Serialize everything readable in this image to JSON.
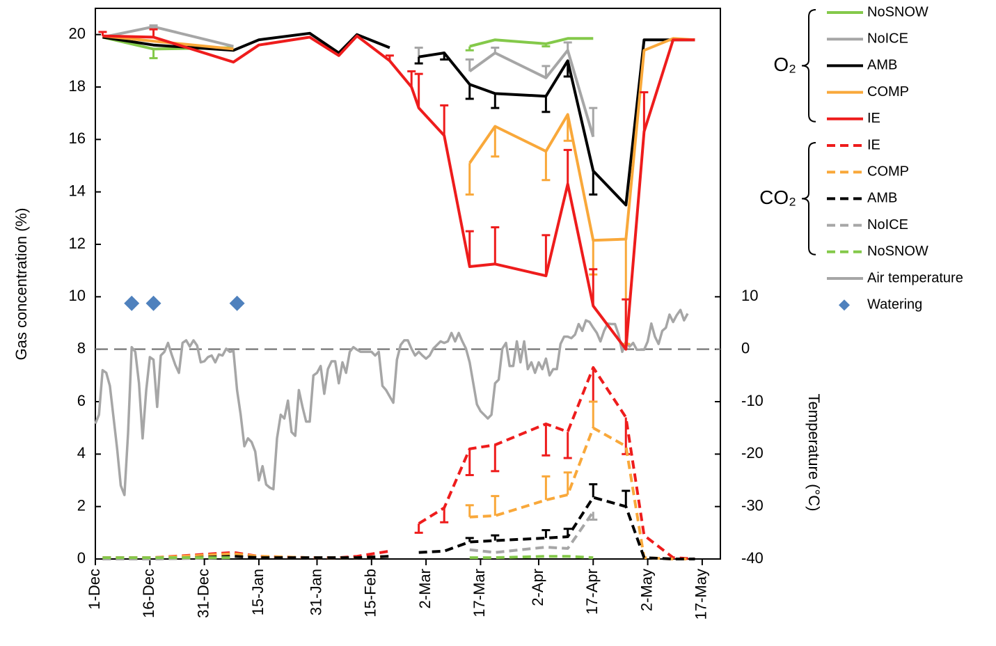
{
  "chart_data": {
    "type": "line",
    "y_label": "Gas concentration (%)",
    "y2_label": "Temperature (°C)",
    "xlim": [
      0,
      172
    ],
    "xticks": [
      {
        "value": 0,
        "label": "1-Dec"
      },
      {
        "value": 15,
        "label": "16-Dec"
      },
      {
        "value": 30,
        "label": "31-Dec"
      },
      {
        "value": 45,
        "label": "15-Jan"
      },
      {
        "value": 61,
        "label": "31-Jan"
      },
      {
        "value": 76,
        "label": "15-Feb"
      },
      {
        "value": 91,
        "label": "2-Mar"
      },
      {
        "value": 106,
        "label": "17-Mar"
      },
      {
        "value": 122,
        "label": "2-Apr"
      },
      {
        "value": 137,
        "label": "17-Apr"
      },
      {
        "value": 152,
        "label": "2-May"
      },
      {
        "value": 167,
        "label": "17-May"
      }
    ],
    "ylim": [
      0,
      21
    ],
    "yticks": [
      0,
      2,
      4,
      6,
      8,
      10,
      12,
      14,
      16,
      18,
      20
    ],
    "y2lim": [
      -40,
      65
    ],
    "y2ticks": [
      -40,
      -30,
      -20,
      -10,
      0,
      10
    ],
    "y2_reference": 0,
    "legend_groups": [
      {
        "label": "O₂"
      },
      {
        "label": "CO₂"
      }
    ],
    "x": [
      2,
      16,
      38,
      45,
      59,
      67,
      72,
      81,
      87,
      89,
      96,
      103,
      110,
      124,
      130,
      137,
      146,
      151,
      159,
      165
    ],
    "series": [
      {
        "name": "NoSNOW",
        "group": 0,
        "color": "#84c94a",
        "dash": false,
        "error_direction": "down",
        "values": [
          19.9,
          19.45,
          19.5,
          null,
          null,
          null,
          null,
          null,
          null,
          null,
          null,
          19.55,
          19.8,
          19.65,
          19.85,
          19.85,
          null,
          null,
          null,
          null
        ],
        "errors": [
          null,
          0.35,
          null,
          null,
          null,
          null,
          null,
          null,
          null,
          null,
          null,
          0.15,
          null,
          0.1,
          null,
          null,
          null,
          null,
          null,
          null
        ]
      },
      {
        "name": "NoICE",
        "group": 0,
        "color": "#a6a6a6",
        "dash": false,
        "error_direction": "up",
        "values": [
          19.9,
          20.3,
          19.55,
          null,
          null,
          null,
          null,
          null,
          null,
          19.1,
          null,
          18.6,
          19.3,
          18.35,
          19.4,
          16.1,
          null,
          null,
          null,
          null
        ],
        "errors": [
          null,
          0.05,
          null,
          null,
          null,
          null,
          null,
          null,
          null,
          0.4,
          null,
          0.45,
          0.2,
          0.45,
          0.3,
          1.1,
          null,
          null,
          null,
          null
        ]
      },
      {
        "name": "AMB",
        "group": 0,
        "color": "#000000",
        "dash": false,
        "error_direction": "down",
        "values": [
          19.9,
          19.6,
          19.4,
          19.8,
          20.05,
          19.3,
          20.0,
          19.5,
          null,
          19.15,
          19.3,
          18.1,
          17.75,
          17.65,
          19.0,
          14.8,
          13.5,
          19.8,
          19.8,
          19.8
        ],
        "errors": [
          null,
          null,
          null,
          null,
          null,
          null,
          null,
          null,
          null,
          0.25,
          0.25,
          0.55,
          0.55,
          0.6,
          0.6,
          0.9,
          null,
          null,
          null,
          null
        ]
      },
      {
        "name": "COMP",
        "group": 0,
        "color": "#f9a83a",
        "dash": false,
        "error_direction": "down",
        "values": [
          19.95,
          19.75,
          19.45,
          null,
          null,
          null,
          null,
          null,
          null,
          null,
          null,
          15.1,
          16.5,
          15.55,
          16.95,
          12.15,
          12.2,
          19.4,
          19.85,
          19.8
        ],
        "errors": [
          null,
          null,
          null,
          null,
          null,
          null,
          null,
          null,
          null,
          null,
          null,
          1.2,
          1.15,
          1.1,
          1.0,
          1.3,
          4.0,
          null,
          null,
          null
        ]
      },
      {
        "name": "IE",
        "group": 0,
        "color": "#ee1c1c",
        "dash": false,
        "error_direction": "up",
        "values": [
          19.95,
          19.9,
          18.95,
          19.6,
          19.9,
          19.2,
          19.95,
          19.0,
          18.0,
          17.2,
          16.15,
          11.15,
          11.25,
          10.8,
          14.3,
          9.65,
          8.0,
          16.3,
          19.8,
          19.8
        ],
        "errors": [
          0.15,
          0.3,
          null,
          null,
          null,
          null,
          null,
          0.2,
          0.6,
          1.3,
          1.15,
          1.35,
          1.4,
          1.55,
          1.3,
          1.4,
          1.9,
          1.5,
          null,
          null
        ]
      },
      {
        "name": "IE",
        "group": 1,
        "color": "#ee1c1c",
        "dash": true,
        "error_direction": "down",
        "values": [
          0.05,
          0.05,
          0.25,
          0.1,
          0.05,
          0.05,
          0.1,
          0.3,
          null,
          1.35,
          1.95,
          4.2,
          4.35,
          5.15,
          4.85,
          7.3,
          5.4,
          0.9,
          0.05,
          0.0
        ],
        "errors": [
          null,
          null,
          null,
          null,
          null,
          null,
          null,
          null,
          null,
          0.35,
          0.55,
          1.0,
          1.0,
          1.2,
          1.0,
          1.3,
          1.4,
          null,
          null,
          null
        ]
      },
      {
        "name": "COMP",
        "group": 1,
        "color": "#f9a83a",
        "dash": true,
        "error_direction": "up",
        "values": [
          0,
          0.05,
          0.2,
          0.1,
          0.05,
          0.05,
          0.05,
          0.1,
          null,
          0.3,
          null,
          1.6,
          1.65,
          2.25,
          2.45,
          5.0,
          4.3,
          0.05,
          0,
          0
        ],
        "errors": [
          null,
          null,
          null,
          null,
          null,
          null,
          null,
          null,
          null,
          null,
          null,
          0.45,
          0.75,
          0.9,
          0.85,
          1.0,
          null,
          null,
          null,
          null
        ]
      },
      {
        "name": "AMB",
        "group": 1,
        "color": "#000000",
        "dash": true,
        "error_direction": "up",
        "values": [
          0,
          0,
          0.1,
          0.05,
          0.05,
          0.05,
          0.05,
          0.1,
          null,
          0.25,
          0.3,
          0.65,
          0.7,
          0.8,
          0.85,
          2.35,
          2.0,
          0.05,
          0,
          0
        ],
        "errors": [
          null,
          null,
          null,
          null,
          null,
          null,
          null,
          null,
          null,
          null,
          null,
          0.15,
          0.2,
          0.3,
          0.3,
          0.5,
          0.6,
          null,
          null,
          null
        ]
      },
      {
        "name": "NoICE",
        "group": 1,
        "color": "#a6a6a6",
        "dash": true,
        "error_direction": "down",
        "values": [
          0,
          0,
          0.05,
          null,
          null,
          null,
          null,
          null,
          null,
          null,
          null,
          0.35,
          0.25,
          0.45,
          0.4,
          1.8,
          null,
          null,
          null,
          null
        ],
        "errors": [
          null,
          null,
          null,
          null,
          null,
          null,
          null,
          null,
          null,
          null,
          null,
          null,
          null,
          null,
          null,
          0.3,
          null,
          null,
          null,
          null
        ]
      },
      {
        "name": "NoSNOW",
        "group": 1,
        "color": "#84c94a",
        "dash": true,
        "error_direction": "up",
        "values": [
          0.05,
          0.05,
          0.05,
          null,
          null,
          null,
          null,
          null,
          null,
          null,
          null,
          0.05,
          0.05,
          0.1,
          0.1,
          0.05,
          null,
          null,
          null,
          null
        ]
      },
      {
        "name": "Air temperature",
        "color": "#a6a6a6",
        "dash": false,
        "axis": "y2",
        "x": [
          0,
          1,
          2,
          3,
          4,
          5,
          6,
          7,
          8,
          9,
          10,
          11,
          12,
          13,
          14,
          15,
          16,
          17,
          18,
          19,
          20,
          21,
          22,
          23,
          24,
          25,
          26,
          27,
          28,
          29,
          30,
          31,
          32,
          33,
          34,
          35,
          36,
          37,
          38,
          39,
          40,
          41,
          42,
          43,
          44,
          45,
          46,
          47,
          48,
          49,
          50,
          51,
          52,
          53,
          54,
          55,
          56,
          57,
          58,
          59,
          60,
          61,
          62,
          63,
          64,
          65,
          66,
          67,
          68,
          69,
          70,
          71,
          72,
          73,
          74,
          75,
          76,
          77,
          78,
          79,
          80,
          81,
          82,
          83,
          84,
          85,
          86,
          87,
          88,
          89,
          90,
          91,
          92,
          93,
          94,
          95,
          96,
          97,
          98,
          99,
          100,
          101,
          102,
          103,
          104,
          105,
          106,
          107,
          108,
          109,
          110,
          111,
          112,
          113,
          114,
          115,
          116,
          117,
          118,
          119,
          120,
          121,
          122,
          123,
          124,
          125,
          126,
          127,
          128,
          129,
          130,
          131,
          132,
          133,
          134,
          135,
          136,
          137,
          138,
          139,
          140,
          141,
          142,
          143,
          144,
          145,
          146,
          147,
          148,
          149,
          150,
          151,
          152,
          153,
          154,
          155,
          156,
          157,
          158,
          159,
          160,
          161,
          162,
          163
        ],
        "values": [
          -14.2,
          -12.5,
          -4,
          -4.5,
          -7,
          -13,
          -19,
          -26,
          -27.8,
          -16,
          0.4,
          -0.5,
          -6.5,
          -17,
          -7.8,
          -1.5,
          -2,
          -11,
          -1.2,
          -0.5,
          1.2,
          -1,
          -3,
          -4.5,
          1.2,
          1.7,
          0.5,
          1.7,
          0.7,
          -2.5,
          -2.3,
          -1.5,
          -1.2,
          -2.5,
          -1,
          -1.2,
          0.1,
          -0.5,
          -0.3,
          -7.8,
          -12.5,
          -18.5,
          -17,
          -17.7,
          -19.5,
          -25,
          -22.3,
          -25.8,
          -26.4,
          -26.7,
          -17,
          -12.5,
          -13.2,
          -9.8,
          -15.8,
          -16.5,
          -7.8,
          -11,
          -13.8,
          -13.8,
          -5,
          -4.5,
          -3.2,
          -8.5,
          -3.8,
          -2.3,
          -2.3,
          -6.5,
          -2.5,
          -4.5,
          -0.5,
          0.4,
          -0.1,
          -0.5,
          -0.5,
          -0.5,
          -0.5,
          -1.2,
          -0.5,
          -7,
          -7.8,
          -9,
          -10.2,
          -2,
          0.8,
          1.7,
          1.7,
          0.1,
          -1.2,
          -0.5,
          -1.2,
          -1.8,
          -1.2,
          0.1,
          0.8,
          1.5,
          1.2,
          1.5,
          3.1,
          1.5,
          3.1,
          1.5,
          0.1,
          -2.5,
          -6.5,
          -10.5,
          -11.8,
          -12.5,
          -13.2,
          -12.5,
          -6.5,
          -5.8,
          0.1,
          1.2,
          -3.2,
          -3.2,
          1.5,
          -2.5,
          1.5,
          -3.8,
          -2.5,
          -4.5,
          -2.5,
          -3.8,
          -1.8,
          -5,
          -3.8,
          -3.8,
          1,
          2.4,
          2.4,
          2.1,
          2.8,
          4.8,
          3.5,
          5.5,
          5.2,
          4.1,
          3.1,
          1.5,
          3.5,
          4.9,
          4.8,
          4.8,
          2.8,
          -0.5,
          1.5,
          0.5,
          1.2,
          -0.1,
          -0.1,
          -0.1,
          1.5,
          4.9,
          2.4,
          1,
          3.5,
          4.1,
          6.6,
          5.2,
          6.5,
          7.5,
          5.5,
          6.8
        ]
      },
      {
        "name": "Watering",
        "color": "#4f81bd",
        "marker": "diamond",
        "x": [
          10,
          16,
          39
        ],
        "values": [
          9.75,
          9.75,
          9.75
        ]
      }
    ]
  }
}
